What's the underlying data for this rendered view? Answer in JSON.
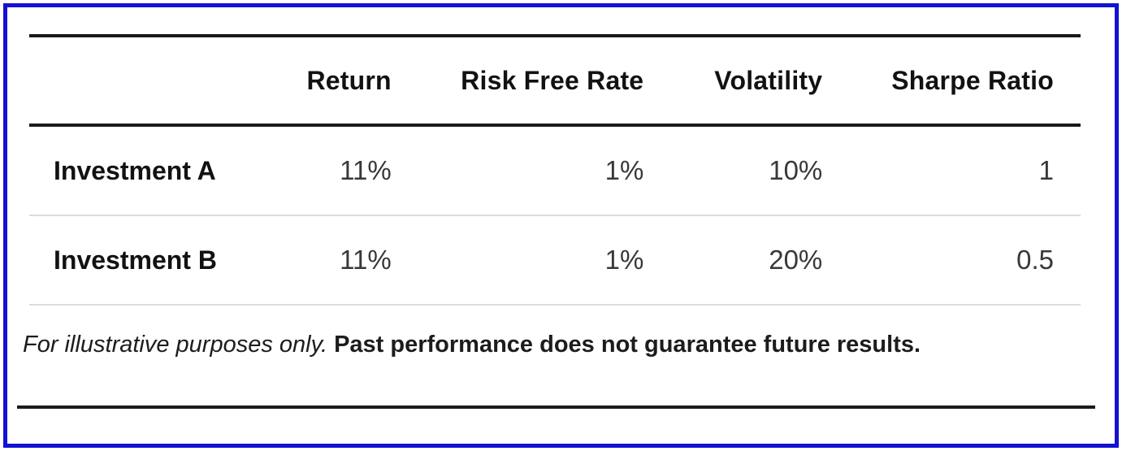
{
  "table": {
    "columns": [
      "",
      "Return",
      "Risk Free Rate",
      "Volatility",
      "Sharpe Ratio"
    ],
    "rows": [
      {
        "label": "Investment A",
        "values": [
          "11%",
          "1%",
          "10%",
          "1"
        ]
      },
      {
        "label": "Investment B",
        "values": [
          "11%",
          "1%",
          "20%",
          "0.5"
        ]
      }
    ]
  },
  "footnote": {
    "italic_text": "For illustrative purposes only.",
    "bold_text": "Past performance does not guarantee future results."
  },
  "colors": {
    "frame_border": "#1212d4",
    "table_rule": "#1a1a1a",
    "row_divider": "#dcdcdc",
    "header_text": "#121212",
    "value_text": "#38383c"
  },
  "chart_data": {
    "type": "table",
    "columns": [
      "",
      "Return",
      "Risk Free Rate",
      "Volatility",
      "Sharpe Ratio"
    ],
    "rows": [
      [
        "Investment A",
        "11%",
        "1%",
        "10%",
        "1"
      ],
      [
        "Investment B",
        "11%",
        "1%",
        "20%",
        "0.5"
      ]
    ]
  }
}
